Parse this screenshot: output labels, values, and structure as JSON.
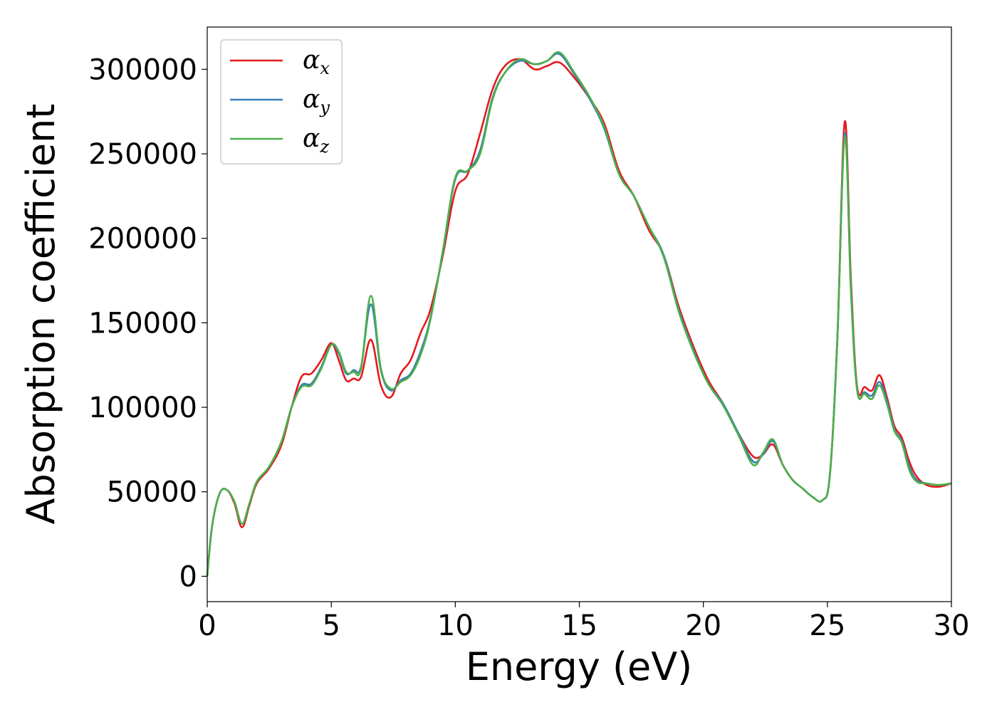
{
  "chart_data": {
    "type": "line",
    "title": "",
    "xlabel": "Energy (eV)",
    "ylabel": "Absorption coefficient",
    "xlim": [
      0,
      30
    ],
    "ylim": [
      -15000,
      325000
    ],
    "xticks": [
      0,
      5,
      10,
      15,
      20,
      25,
      30
    ],
    "yticks": [
      0,
      50000,
      100000,
      150000,
      200000,
      250000,
      300000
    ],
    "grid": false,
    "legend_position": "top-left",
    "series": [
      {
        "name": "x",
        "color": "#e41a1c",
        "x": [
          0,
          0.2,
          0.5,
          0.8,
          1.1,
          1.4,
          1.7,
          2.0,
          2.5,
          3.0,
          3.4,
          3.8,
          4.2,
          4.6,
          5.0,
          5.3,
          5.6,
          5.9,
          6.2,
          6.6,
          7.0,
          7.4,
          7.8,
          8.2,
          8.6,
          9.0,
          9.5,
          10.0,
          10.5,
          11.0,
          11.5,
          12.0,
          12.6,
          13.2,
          13.7,
          14.2,
          14.8,
          15.4,
          16.0,
          16.6,
          17.2,
          17.8,
          18.4,
          19.0,
          19.6,
          20.2,
          20.8,
          21.4,
          22.0,
          22.4,
          22.8,
          23.2,
          23.6,
          24.0,
          24.4,
          24.8,
          25.1,
          25.4,
          25.7,
          25.95,
          26.2,
          26.5,
          26.8,
          27.1,
          27.4,
          27.7,
          28.0,
          28.3,
          28.6,
          29.0,
          29.5,
          30.0
        ],
        "values": [
          0,
          30000,
          49000,
          51000,
          43000,
          29000,
          42000,
          55000,
          64000,
          78000,
          100000,
          118000,
          120000,
          128000,
          138000,
          128000,
          116000,
          117000,
          118000,
          140000,
          113000,
          106000,
          120000,
          128000,
          144000,
          158000,
          190000,
          228000,
          238000,
          262000,
          288000,
          302000,
          306000,
          300000,
          302000,
          304000,
          295000,
          283000,
          268000,
          240000,
          225000,
          205000,
          190000,
          160000,
          136000,
          116000,
          102000,
          85000,
          71000,
          72000,
          78000,
          66000,
          57000,
          52000,
          47000,
          45000,
          60000,
          140000,
          269000,
          175000,
          112000,
          112000,
          110000,
          119000,
          106000,
          89000,
          82000,
          68000,
          59000,
          54000,
          53000,
          55000
        ]
      },
      {
        "name": "y",
        "color": "#377eb8",
        "x": [
          0,
          0.2,
          0.5,
          0.8,
          1.1,
          1.4,
          1.7,
          2.0,
          2.5,
          3.0,
          3.4,
          3.8,
          4.2,
          4.6,
          5.0,
          5.3,
          5.6,
          5.9,
          6.2,
          6.6,
          7.0,
          7.4,
          7.8,
          8.2,
          8.6,
          9.0,
          9.5,
          10.0,
          10.5,
          11.0,
          11.5,
          12.0,
          12.6,
          13.2,
          13.7,
          14.2,
          14.8,
          15.4,
          16.0,
          16.6,
          17.2,
          17.8,
          18.4,
          19.0,
          19.6,
          20.2,
          20.8,
          21.4,
          22.0,
          22.4,
          22.8,
          23.2,
          23.6,
          24.0,
          24.4,
          24.8,
          25.1,
          25.4,
          25.7,
          25.95,
          26.2,
          26.5,
          26.8,
          27.1,
          27.4,
          27.7,
          28.0,
          28.3,
          28.6,
          29.0,
          29.5,
          30.0
        ],
        "values": [
          0,
          30000,
          49000,
          51000,
          44000,
          31000,
          43000,
          56000,
          65000,
          80000,
          100000,
          113000,
          114000,
          124000,
          137000,
          132000,
          120000,
          122000,
          124000,
          161000,
          122000,
          110000,
          116000,
          120000,
          133000,
          153000,
          192000,
          235000,
          240000,
          252000,
          283000,
          298000,
          305000,
          303000,
          305000,
          309000,
          297000,
          283000,
          265000,
          238000,
          225000,
          207000,
          190000,
          158000,
          134000,
          114000,
          102000,
          85000,
          68000,
          72000,
          80000,
          66000,
          57000,
          52000,
          47000,
          45000,
          60000,
          140000,
          262000,
          170000,
          110000,
          109000,
          107000,
          115000,
          104000,
          87000,
          80000,
          65000,
          57000,
          55000,
          54000,
          55000
        ]
      },
      {
        "name": "z",
        "color": "#4daf4a",
        "x": [
          0,
          0.2,
          0.5,
          0.8,
          1.1,
          1.4,
          1.7,
          2.0,
          2.5,
          3.0,
          3.4,
          3.8,
          4.2,
          4.6,
          5.0,
          5.3,
          5.6,
          5.9,
          6.2,
          6.6,
          7.0,
          7.4,
          7.8,
          8.2,
          8.6,
          9.0,
          9.5,
          10.0,
          10.5,
          11.0,
          11.5,
          12.0,
          12.6,
          13.2,
          13.7,
          14.2,
          14.8,
          15.4,
          16.0,
          16.6,
          17.2,
          17.8,
          18.4,
          19.0,
          19.6,
          20.2,
          20.8,
          21.4,
          22.0,
          22.4,
          22.8,
          23.2,
          23.6,
          24.0,
          24.4,
          24.8,
          25.1,
          25.4,
          25.7,
          25.95,
          26.2,
          26.5,
          26.8,
          27.1,
          27.4,
          27.7,
          28.0,
          28.3,
          28.6,
          29.0,
          29.5,
          30.0
        ],
        "values": [
          0,
          30000,
          49000,
          51000,
          44000,
          31000,
          43000,
          56000,
          65000,
          80000,
          100000,
          112000,
          113000,
          123000,
          137000,
          133000,
          121000,
          121000,
          123000,
          166000,
          123000,
          111000,
          115000,
          119000,
          131000,
          152000,
          193000,
          236000,
          240000,
          250000,
          282000,
          298000,
          306000,
          303000,
          305000,
          310000,
          298000,
          284000,
          266000,
          238000,
          225000,
          207000,
          189000,
          157000,
          133000,
          114000,
          101000,
          84000,
          66000,
          73000,
          81000,
          66000,
          57000,
          52000,
          47000,
          45000,
          60000,
          140000,
          260000,
          168000,
          110000,
          108000,
          105000,
          113000,
          102000,
          86000,
          79000,
          63000,
          56000,
          55000,
          54000,
          55000
        ]
      }
    ]
  }
}
